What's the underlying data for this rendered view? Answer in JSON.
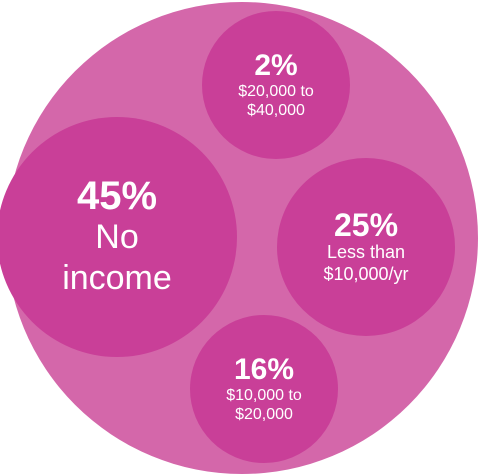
{
  "chart_data": {
    "type": "bubble",
    "categories": [
      "No income",
      "$20,000 to $40,000",
      "Less than $10,000/yr",
      "$10,000 to $20,000"
    ],
    "values": [
      45,
      2,
      25,
      16
    ],
    "value_labels": [
      "45%",
      "2%",
      "25%",
      "16%"
    ],
    "color": "#c93f98",
    "background_color": "#d467aa"
  }
}
